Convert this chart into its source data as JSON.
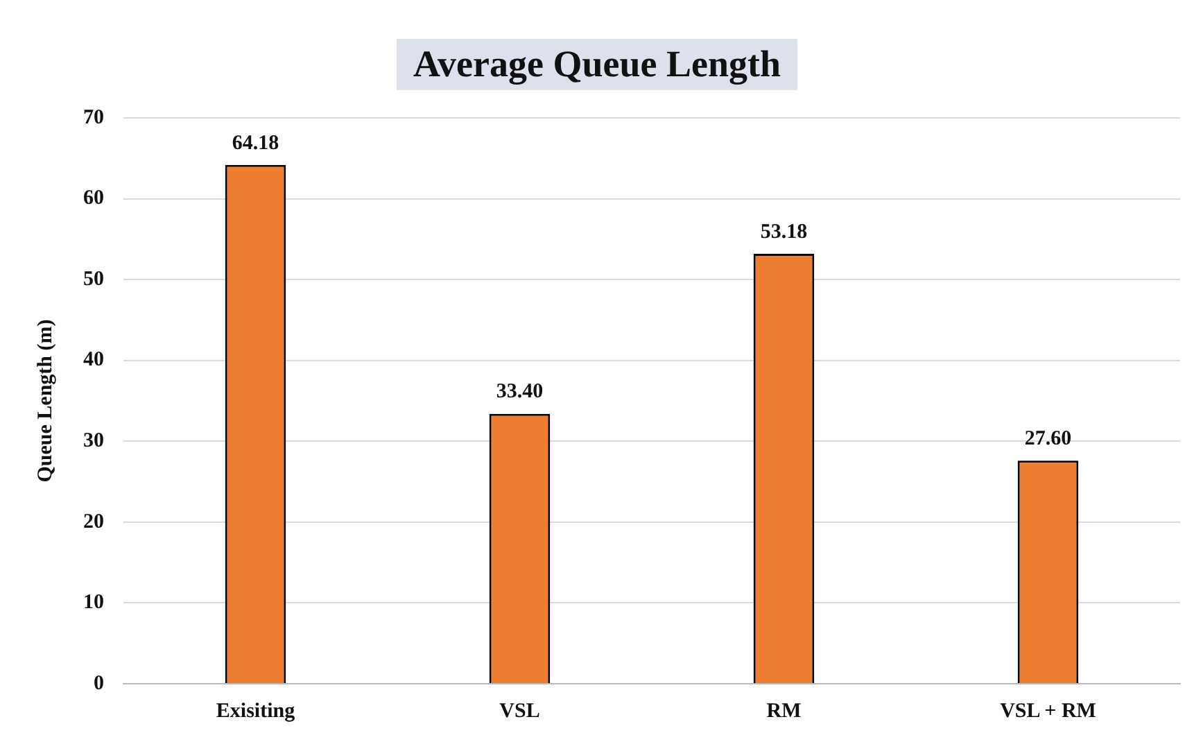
{
  "chart_data": {
    "type": "bar",
    "title": "Average Queue Length",
    "ylabel": "Queue Length (m)",
    "categories": [
      "Exisiting",
      "VSL",
      "RM",
      "VSL + RM"
    ],
    "values": [
      64.18,
      33.4,
      53.18,
      27.6
    ],
    "value_labels": [
      "64.18",
      "33.40",
      "53.18",
      "27.60"
    ],
    "color": "#ed7d31",
    "ylim": [
      0,
      70
    ],
    "yticks": [
      0,
      10,
      20,
      30,
      40,
      50,
      60,
      70
    ],
    "grid": "y",
    "legend": false
  }
}
